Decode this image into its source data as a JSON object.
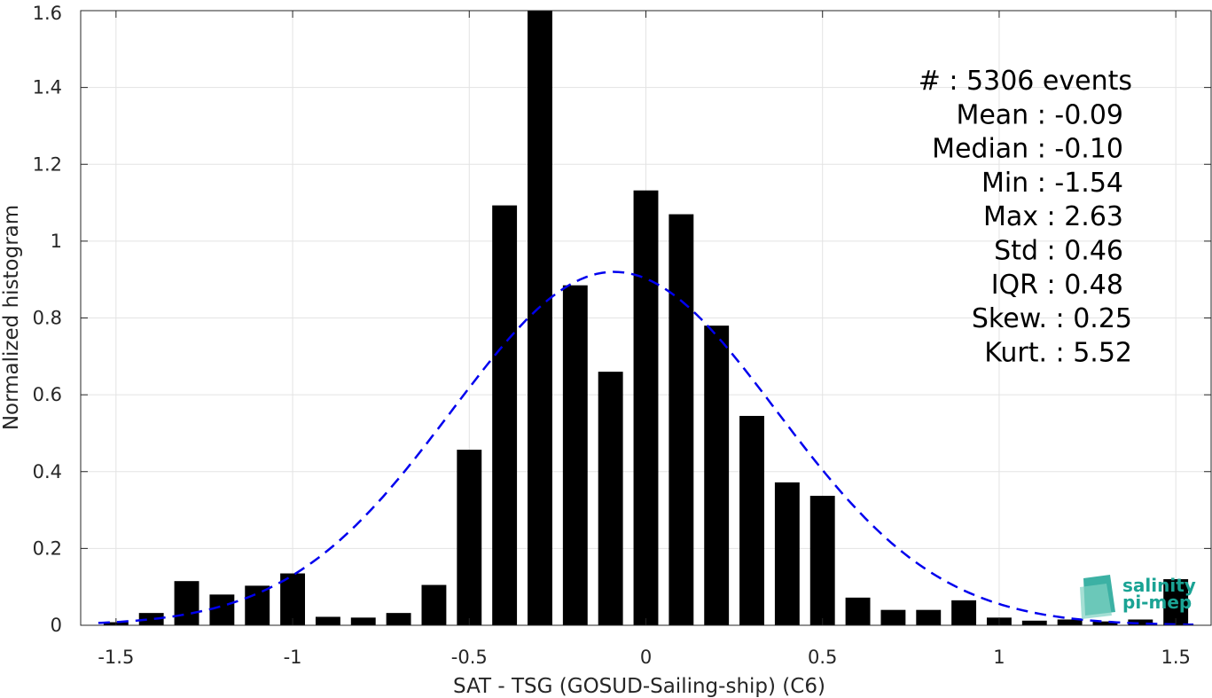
{
  "chart_data": {
    "type": "bar",
    "xlabel": "SAT - TSG (GOSUD-Sailing-ship) (C6)",
    "ylabel": "Normalized histogram",
    "xlim": [
      -1.6,
      1.6
    ],
    "ylim": [
      0,
      1.6
    ],
    "xticks": [
      -1.5,
      -1,
      -0.5,
      0,
      0.5,
      1,
      1.5
    ],
    "xtick_labels": [
      "-1.5",
      "-1",
      "-0.5",
      "0",
      "0.5",
      "1",
      "1.5"
    ],
    "yticks": [
      0,
      0.2,
      0.4,
      0.6,
      0.8,
      1,
      1.2,
      1.4,
      1.6
    ],
    "ytick_labels": [
      "0",
      "0.2",
      "0.4",
      "0.6",
      "0.8",
      "1",
      "1.2",
      "1.4",
      "1.6"
    ],
    "grid": true,
    "bar_color": "#000000",
    "bin_centers": [
      -1.5,
      -1.4,
      -1.3,
      -1.2,
      -1.1,
      -1.0,
      -0.9,
      -0.8,
      -0.7,
      -0.6,
      -0.5,
      -0.4,
      -0.3,
      -0.2,
      -0.1,
      0.0,
      0.1,
      0.2,
      0.3,
      0.4,
      0.5,
      0.6,
      0.7,
      0.8,
      0.9,
      1.0,
      1.1,
      1.2,
      1.3,
      1.4,
      1.5
    ],
    "values": [
      0.008,
      0.032,
      0.115,
      0.08,
      0.103,
      0.135,
      0.022,
      0.02,
      0.032,
      0.105,
      0.457,
      1.093,
      1.6,
      0.885,
      0.66,
      1.132,
      1.07,
      0.78,
      0.545,
      0.372,
      0.337,
      0.072,
      0.04,
      0.04,
      0.065,
      0.02,
      0.012,
      0.015,
      0.01,
      0.015,
      0.12
    ],
    "fit_curve": {
      "type": "gaussian",
      "mean": -0.09,
      "std": 0.46,
      "peak": 0.92,
      "color": "#0000ee",
      "style": "dashed"
    },
    "stats_lines": [
      "#  : 5306 events",
      "Mean : -0.09",
      "Median : -0.10",
      "Min : -1.54",
      "Max : 2.63",
      "Std : 0.46",
      "IQR : 0.48",
      "Skew. : 0.25",
      "Kurt. : 5.52"
    ]
  },
  "logo": {
    "line1": "salinity",
    "line2": "pi-mep",
    "color": "#1aa394"
  }
}
